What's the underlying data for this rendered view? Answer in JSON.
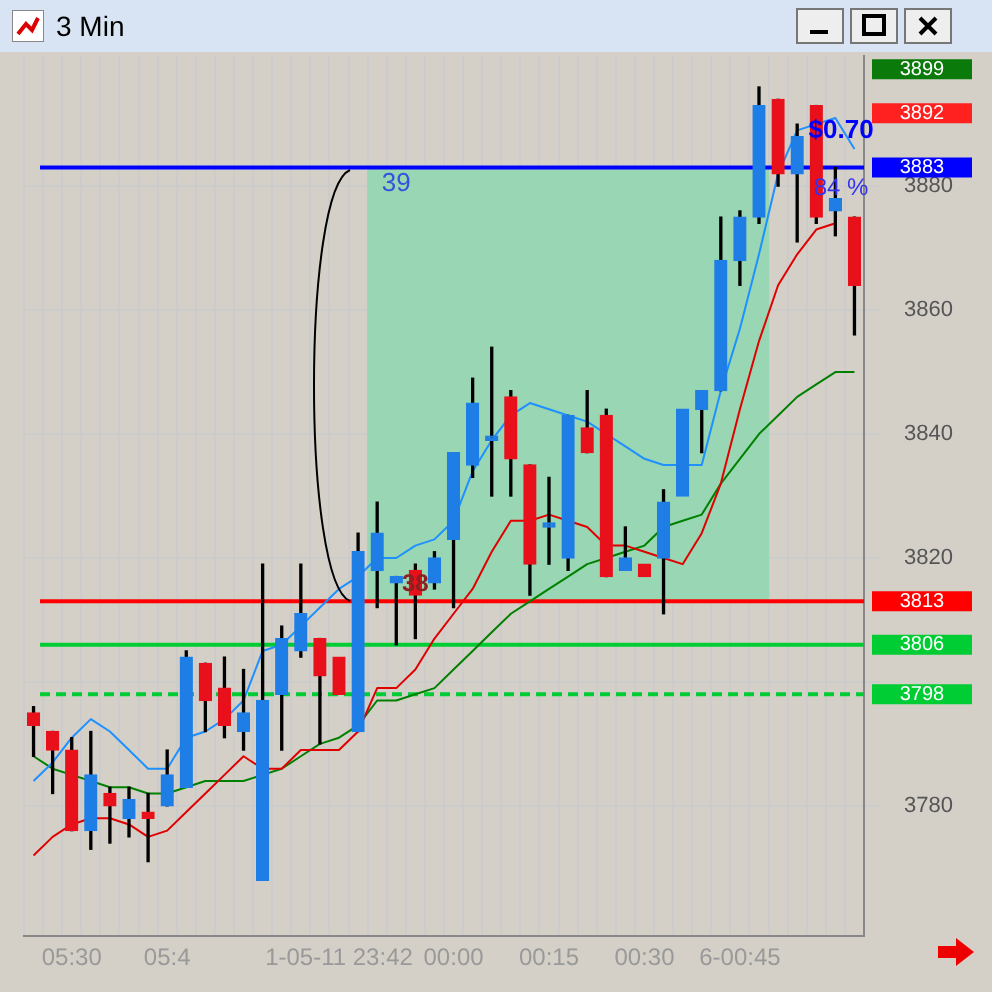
{
  "chart_data": {
    "type": "candlestick",
    "title": "3 Min",
    "categories": [
      null,
      null,
      "05:30",
      null,
      null,
      null,
      null,
      "05:4",
      null,
      null,
      null,
      null,
      null,
      null,
      null,
      null,
      "1-05-11 23:42",
      null,
      null,
      null,
      null,
      null,
      "00:00",
      null,
      null,
      null,
      null,
      "00:15",
      null,
      null,
      null,
      null,
      "00:30",
      null,
      null,
      null,
      null,
      "6-00:45",
      null,
      null,
      null,
      null,
      null,
      null
    ],
    "ohlc": [
      [
        3795,
        3796,
        3788,
        3793
      ],
      [
        3792,
        3792,
        3782,
        3789
      ],
      [
        3789,
        3791,
        3776,
        3776
      ],
      [
        3776,
        3792,
        3773,
        3785
      ],
      [
        3782,
        3783,
        3774,
        3780
      ],
      [
        3778,
        3783,
        3775,
        3781
      ],
      [
        3779,
        3782,
        3771,
        3778
      ],
      [
        3780,
        3789,
        3780,
        3785
      ],
      [
        3783,
        3805,
        3783,
        3804
      ],
      [
        3803,
        3803,
        3792,
        3797
      ],
      [
        3799,
        3804,
        3791,
        3793
      ],
      [
        3792,
        3802,
        3789,
        3795
      ],
      [
        3768,
        3819,
        3768,
        3797
      ],
      [
        3798,
        3809,
        3789,
        3807
      ],
      [
        3805,
        3819,
        3804,
        3811
      ],
      [
        3807,
        3807,
        3790,
        3801
      ],
      [
        3804,
        3804,
        3798,
        3798
      ],
      [
        3792,
        3824,
        3792,
        3821
      ],
      [
        3818,
        3829,
        3812,
        3824
      ],
      [
        3816,
        3817,
        3806,
        3817
      ],
      [
        3818,
        3819,
        3807,
        3814
      ],
      [
        3816,
        3821,
        3815,
        3820
      ],
      [
        3823,
        3837,
        3812,
        3837
      ],
      [
        3835,
        3849,
        3833,
        3845
      ],
      [
        3839,
        3854,
        3830,
        3839
      ],
      [
        3846,
        3847,
        3830,
        3836
      ],
      [
        3835,
        3835,
        3814,
        3819
      ],
      [
        3825,
        3833,
        3819,
        3825
      ],
      [
        3820,
        3843,
        3818,
        3843
      ],
      [
        3841,
        3847,
        3837,
        3837
      ],
      [
        3843,
        3844,
        3817,
        3817
      ],
      [
        3818,
        3825,
        3818,
        3820
      ],
      [
        3819,
        3819,
        3817,
        3817
      ],
      [
        3820,
        3831,
        3811,
        3829
      ],
      [
        3830,
        3844,
        3830,
        3844
      ],
      [
        3844,
        3847,
        3837,
        3847
      ],
      [
        3847,
        3875,
        3847,
        3868
      ],
      [
        3868,
        3876,
        3864,
        3875
      ],
      [
        3875,
        3896,
        3874,
        3893
      ],
      [
        3894,
        3894,
        3880,
        3882
      ],
      [
        3882,
        3890,
        3871,
        3888
      ],
      [
        3893,
        3893,
        3874,
        3875
      ],
      [
        3876,
        3883,
        3872,
        3878
      ],
      [
        3875,
        3875,
        3856,
        3864
      ]
    ],
    "colors": [
      "#e8101a",
      "#e8101a",
      "#e8101a",
      "#1e7ee6",
      "#e8101a",
      "#1e7ee6",
      "#e8101a",
      "#1e7ee6",
      "#1e7ee6",
      "#e8101a",
      "#e8101a",
      "#1e7ee6",
      "#1e7ee6",
      "#1e7ee6",
      "#1e7ee6",
      "#e8101a",
      "#e8101a",
      "#1e7ee6",
      "#1e7ee6",
      "#1e7ee6",
      "#e8101a",
      "#1e7ee6",
      "#1e7ee6",
      "#1e7ee6",
      "#1e7ee6",
      "#e8101a",
      "#e8101a",
      "#1e7ee6",
      "#1e7ee6",
      "#e8101a",
      "#e8101a",
      "#1e7ee6",
      "#e8101a",
      "#1e7ee6",
      "#1e7ee6",
      "#1e7ee6",
      "#1e7ee6",
      "#1e7ee6",
      "#1e7ee6",
      "#e8101a",
      "#1e7ee6",
      "#e8101a",
      "#1e7ee6",
      "#e8101a"
    ],
    "series": [
      {
        "type": "line",
        "color": "#1e90ff",
        "values": [
          3784,
          3787,
          3791,
          3794,
          3792,
          3789,
          3786,
          3786,
          3791,
          3792,
          3794,
          3797,
          3805,
          3806,
          3809,
          3812,
          3815,
          3817,
          3820,
          3820,
          3822,
          3823,
          3826,
          3834,
          3839,
          3843,
          3845,
          3844,
          3843,
          3842,
          3840,
          3838,
          3836,
          3835,
          3835,
          3835,
          3847,
          3857,
          3869,
          3882,
          3889,
          3890,
          3891,
          3886
        ]
      },
      {
        "type": "line",
        "color": "#e00000",
        "values": [
          3772,
          3775,
          3777,
          3778,
          3778,
          3777,
          3775,
          3776,
          3779,
          3782,
          3785,
          3788,
          3786,
          3786,
          3789,
          3789,
          3789,
          3792,
          3799,
          3799,
          3802,
          3807,
          3811,
          3815,
          3821,
          3826,
          3826,
          3827,
          3826,
          3825,
          3822,
          3822,
          3821,
          3820,
          3819,
          3824,
          3832,
          3844,
          3855,
          3864,
          3869,
          3873,
          3874,
          null
        ]
      },
      {
        "type": "line",
        "color": "#008000",
        "values": [
          3788,
          3786,
          3785,
          3784,
          3783,
          3783,
          3782,
          3782,
          3783,
          3784,
          3784,
          3784,
          3785,
          3786,
          3788,
          3790,
          3791,
          3793,
          3797,
          3797,
          3798,
          3799,
          3802,
          3805,
          3808,
          3811,
          3813,
          3815,
          3817,
          3819,
          3820,
          3821,
          3822,
          3825,
          3826,
          3827,
          3832,
          3836,
          3840,
          3843,
          3846,
          3848,
          3850,
          3850
        ]
      }
    ],
    "ylim": [
      3759,
      3901
    ],
    "yticks": [
      3780,
      {
        "value": 3800,
        "label": null
      },
      3820,
      3840,
      3860,
      3880
    ],
    "grid": true,
    "legend": false,
    "line_style": "solid",
    "marker": "none",
    "ref_lines": [
      {
        "axis": "y",
        "value": 3883,
        "label": "3883",
        "color": "#0000ff"
      },
      {
        "axis": "y",
        "value": 3813,
        "label": "3813",
        "color": "#ff0000"
      },
      {
        "axis": "y",
        "value": 3806,
        "label": "3806",
        "color": "#00cc33"
      },
      {
        "axis": "y",
        "value": 3798,
        "label": "3798",
        "color": "#00cc33",
        "line_style": "dashed"
      }
    ],
    "bands": [
      {
        "axis": "y",
        "from": 3813,
        "to": 3883,
        "color": "#99d6b3"
      }
    ],
    "annotations": [
      "3899",
      "3892",
      "39",
      "38",
      "$0.70",
      "84 %"
    ]
  }
}
